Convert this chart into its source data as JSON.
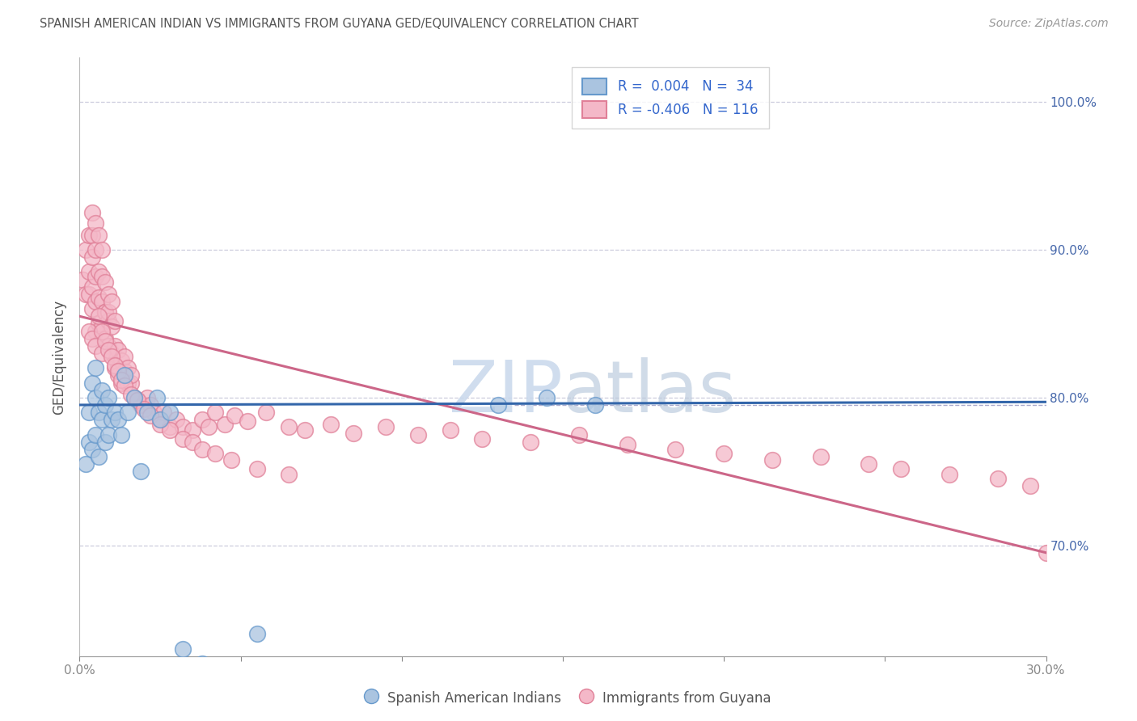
{
  "title": "SPANISH AMERICAN INDIAN VS IMMIGRANTS FROM GUYANA GED/EQUIVALENCY CORRELATION CHART",
  "source": "Source: ZipAtlas.com",
  "ylabel": "GED/Equivalency",
  "xlim": [
    0.0,
    0.3
  ],
  "ylim": [
    0.625,
    1.03
  ],
  "ytick_values": [
    0.7,
    0.8,
    0.9,
    1.0
  ],
  "ytick_labels": [
    "70.0%",
    "80.0%",
    "90.0%",
    "100.0%"
  ],
  "color_blue_face": "#aac4e0",
  "color_blue_edge": "#6699cc",
  "color_pink_face": "#f4b8c8",
  "color_pink_edge": "#e08098",
  "color_line_blue": "#3366aa",
  "color_line_pink": "#cc6688",
  "watermark_color": "#c8d8ec",
  "blue_line_y": [
    0.795,
    0.797
  ],
  "pink_line_y": [
    0.855,
    0.695
  ],
  "dashed_line_y": 0.795,
  "dashed_line_x_start": 0.135,
  "blue_x": [
    0.002,
    0.003,
    0.003,
    0.004,
    0.004,
    0.005,
    0.005,
    0.005,
    0.006,
    0.006,
    0.007,
    0.007,
    0.008,
    0.008,
    0.009,
    0.009,
    0.01,
    0.011,
    0.012,
    0.013,
    0.014,
    0.015,
    0.017,
    0.019,
    0.021,
    0.024,
    0.025,
    0.028,
    0.032,
    0.038,
    0.055,
    0.13,
    0.145,
    0.16
  ],
  "blue_y": [
    0.755,
    0.77,
    0.79,
    0.765,
    0.81,
    0.775,
    0.8,
    0.82,
    0.76,
    0.79,
    0.785,
    0.805,
    0.77,
    0.795,
    0.775,
    0.8,
    0.785,
    0.79,
    0.785,
    0.775,
    0.815,
    0.79,
    0.8,
    0.75,
    0.79,
    0.8,
    0.785,
    0.79,
    0.63,
    0.62,
    0.64,
    0.795,
    0.8,
    0.795
  ],
  "pink_x": [
    0.001,
    0.002,
    0.002,
    0.003,
    0.003,
    0.003,
    0.004,
    0.004,
    0.004,
    0.004,
    0.004,
    0.005,
    0.005,
    0.005,
    0.005,
    0.005,
    0.006,
    0.006,
    0.006,
    0.006,
    0.007,
    0.007,
    0.007,
    0.007,
    0.008,
    0.008,
    0.008,
    0.008,
    0.009,
    0.009,
    0.009,
    0.009,
    0.01,
    0.01,
    0.01,
    0.011,
    0.011,
    0.011,
    0.012,
    0.012,
    0.012,
    0.013,
    0.013,
    0.014,
    0.014,
    0.015,
    0.015,
    0.016,
    0.016,
    0.017,
    0.018,
    0.019,
    0.02,
    0.021,
    0.022,
    0.023,
    0.025,
    0.026,
    0.028,
    0.03,
    0.032,
    0.035,
    0.038,
    0.04,
    0.042,
    0.045,
    0.048,
    0.052,
    0.058,
    0.065,
    0.07,
    0.078,
    0.085,
    0.095,
    0.105,
    0.115,
    0.125,
    0.14,
    0.155,
    0.17,
    0.185,
    0.2,
    0.215,
    0.23,
    0.245,
    0.255,
    0.27,
    0.285,
    0.295,
    0.3,
    0.003,
    0.004,
    0.005,
    0.006,
    0.007,
    0.007,
    0.008,
    0.009,
    0.01,
    0.011,
    0.012,
    0.013,
    0.014,
    0.016,
    0.018,
    0.02,
    0.022,
    0.025,
    0.028,
    0.032,
    0.035,
    0.038,
    0.042,
    0.047,
    0.055,
    0.065
  ],
  "pink_y": [
    0.88,
    0.87,
    0.9,
    0.87,
    0.885,
    0.91,
    0.86,
    0.875,
    0.895,
    0.91,
    0.925,
    0.845,
    0.865,
    0.882,
    0.9,
    0.918,
    0.85,
    0.868,
    0.885,
    0.91,
    0.848,
    0.865,
    0.882,
    0.9,
    0.84,
    0.858,
    0.878,
    0.858,
    0.835,
    0.852,
    0.87,
    0.858,
    0.83,
    0.848,
    0.865,
    0.835,
    0.852,
    0.82,
    0.832,
    0.82,
    0.815,
    0.825,
    0.81,
    0.818,
    0.828,
    0.81,
    0.82,
    0.81,
    0.815,
    0.8,
    0.798,
    0.795,
    0.795,
    0.8,
    0.795,
    0.79,
    0.785,
    0.79,
    0.78,
    0.785,
    0.78,
    0.778,
    0.785,
    0.78,
    0.79,
    0.782,
    0.788,
    0.784,
    0.79,
    0.78,
    0.778,
    0.782,
    0.776,
    0.78,
    0.775,
    0.778,
    0.772,
    0.77,
    0.775,
    0.768,
    0.765,
    0.762,
    0.758,
    0.76,
    0.755,
    0.752,
    0.748,
    0.745,
    0.74,
    0.695,
    0.845,
    0.84,
    0.835,
    0.855,
    0.83,
    0.845,
    0.838,
    0.832,
    0.828,
    0.822,
    0.818,
    0.812,
    0.808,
    0.802,
    0.798,
    0.792,
    0.788,
    0.782,
    0.778,
    0.772,
    0.77,
    0.765,
    0.762,
    0.758,
    0.752,
    0.748
  ]
}
